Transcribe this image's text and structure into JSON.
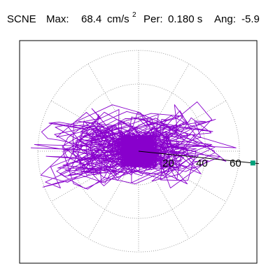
{
  "header": {
    "station": "SCNE",
    "max_label": "Max:",
    "max_value": "68.4",
    "max_unit": "cm/s",
    "max_unit_exp": "2",
    "per_label": "Per:",
    "per_value": "0.180 s",
    "ang_label": "Ang:",
    "ang_value": "-5.9"
  },
  "chart_data": {
    "type": "scatter",
    "subtype": "polar-hodogram",
    "title": "SCNE  Max: 68.4 cm/s^2  Per: 0.180 s  Ang: -5.9",
    "unit": "cm/s^2",
    "radial_ticks": [
      20,
      40,
      60
    ],
    "radial_max": 68.4,
    "angle_deg": -5.9,
    "grid": true,
    "grid_style": "dotted",
    "max_marker": {
      "r": 68.4,
      "angle_deg": -5.9
    },
    "trace_summary": {
      "description_values": "particle motion trace, amplitude in cm/s^2",
      "x_range": [
        -65,
        60
      ],
      "y_range": [
        -32,
        30
      ]
    },
    "colors": {
      "trace": "#8800cc",
      "marker": "#00a07a",
      "grid": "#888888",
      "axis_line": "#000000"
    }
  }
}
